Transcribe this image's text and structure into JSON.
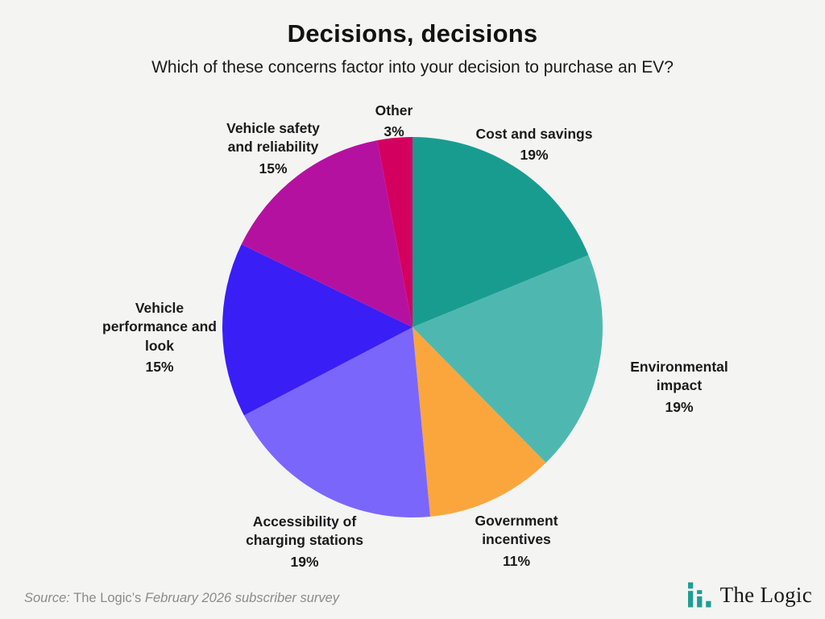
{
  "page": {
    "background_color": "#f4f4f3",
    "source_prefix": "Source:",
    "source_name": "The Logic’s",
    "source_rest": "February 2026 subscriber survey",
    "logo_text": "The Logic",
    "logo_icon_color": "#1f9e93"
  },
  "chart_data": {
    "type": "pie",
    "title": "Decisions, decisions",
    "subtitle": "Which of these concerns factor into your decision to purchase an EV?",
    "start_angle_deg": 0,
    "direction": "clockwise",
    "slices": [
      {
        "label": "Cost and savings",
        "value": 19,
        "pct": "19%",
        "color": "#199c90"
      },
      {
        "label": "Environmental impact",
        "value": 19,
        "pct": "19%",
        "color": "#4eb8b0"
      },
      {
        "label": "Government\nincentives",
        "value": 11,
        "pct": "11%",
        "color": "#fba63d"
      },
      {
        "label": "Accessibility of\ncharging stations",
        "value": 19,
        "pct": "19%",
        "color": "#7b66fb"
      },
      {
        "label": "Vehicle\nperformance and\nlook",
        "value": 15,
        "pct": "15%",
        "color": "#3a1ef6"
      },
      {
        "label": "Vehicle safety\nand reliability",
        "value": 15,
        "pct": "15%",
        "color": "#b511a1"
      },
      {
        "label": "Other",
        "value": 3,
        "pct": "3%",
        "color": "#d40060"
      }
    ]
  }
}
